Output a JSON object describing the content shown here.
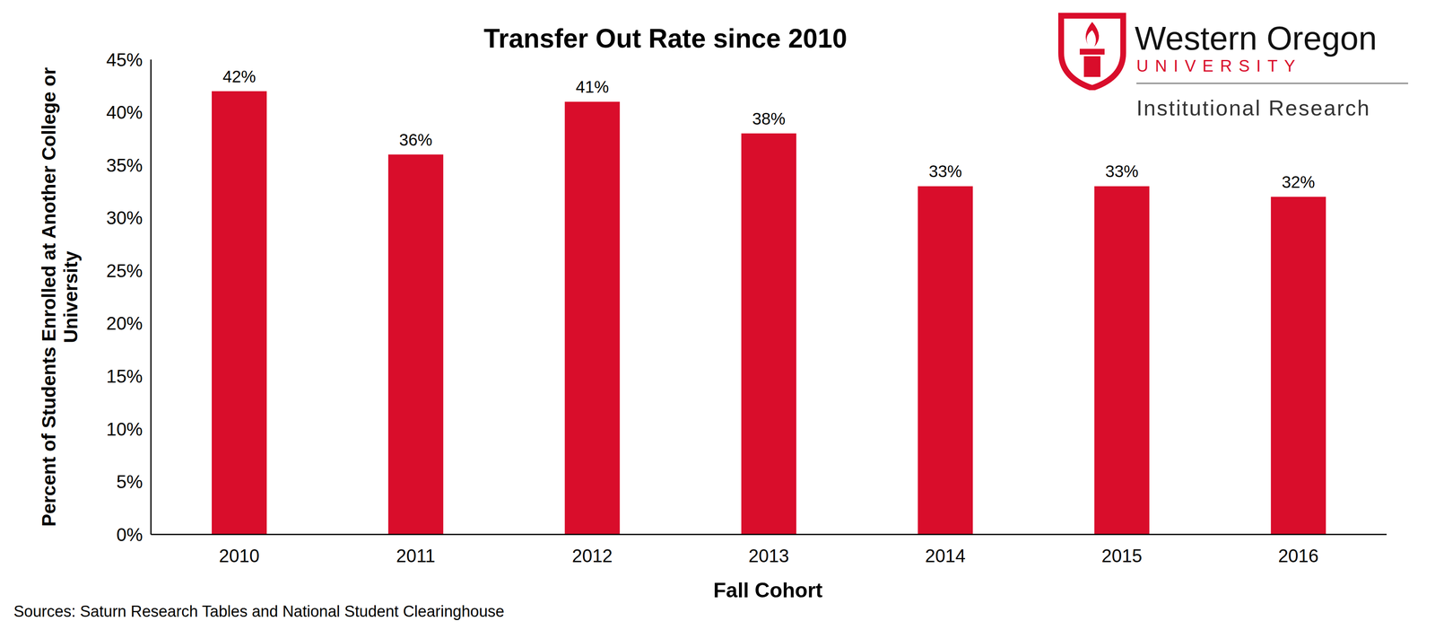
{
  "chart_data": {
    "type": "bar",
    "title": "Transfer Out Rate since 2010",
    "x_label": "Fall Cohort",
    "y_label": "Percent of Students Enrolled at Another College or University",
    "source": "Sources: Saturn Research Tables and National Student Clearinghouse",
    "logo": {
      "name": "Western Oregon",
      "subname": "UNIVERSITY",
      "department": "Institutional Research"
    },
    "categories": [
      "2010",
      "2011",
      "2012",
      "2013",
      "2014",
      "2015",
      "2016"
    ],
    "values": [
      42,
      36,
      41,
      38,
      33,
      33,
      32
    ],
    "value_labels": [
      "42%",
      "36%",
      "41%",
      "38%",
      "33%",
      "33%",
      "32%"
    ],
    "data_labels": true,
    "color": "#d90d2b",
    "ylim": [
      0,
      45
    ],
    "yticks": [
      {
        "value": 0,
        "label": "0%"
      },
      {
        "value": 5,
        "label": "5%"
      },
      {
        "value": 10,
        "label": "10%"
      },
      {
        "value": 15,
        "label": "15%"
      },
      {
        "value": 20,
        "label": "20%"
      },
      {
        "value": 25,
        "label": "25%"
      },
      {
        "value": 30,
        "label": "30%"
      },
      {
        "value": 35,
        "label": "35%"
      },
      {
        "value": 40,
        "label": "40%"
      },
      {
        "value": 45,
        "label": "45%"
      }
    ],
    "grid": false
  }
}
